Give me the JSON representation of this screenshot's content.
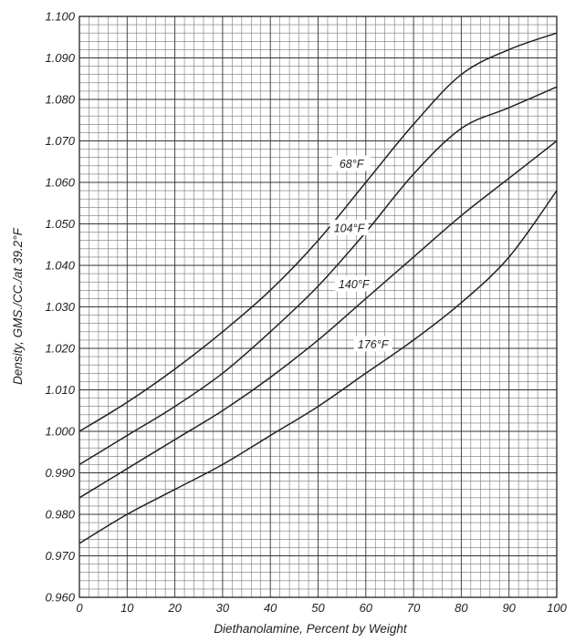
{
  "chart_data": {
    "type": "line",
    "title": "",
    "xlabel": "Diethanolamine, Percent by Weight",
    "ylabel": "Density, GMS./CC./at 39.2°F",
    "xlim": [
      0,
      100
    ],
    "ylim": [
      0.96,
      1.1
    ],
    "x_ticks": [
      "0",
      "10",
      "20",
      "30",
      "40",
      "50",
      "60",
      "70",
      "80",
      "90",
      "100"
    ],
    "y_ticks": [
      "0.960",
      "0.970",
      "0.980",
      "0.990",
      "1.000",
      "1.010",
      "1.020",
      "1.030",
      "1.040",
      "1.050",
      "1.060",
      "1.070",
      "1.080",
      "1.090",
      "1.100"
    ],
    "grid": true,
    "legend": "none",
    "series": [
      {
        "name": "68°F",
        "x": [
          0,
          10,
          20,
          30,
          40,
          50,
          60,
          70,
          80,
          90,
          100
        ],
        "values": [
          1.0,
          1.007,
          1.015,
          1.024,
          1.034,
          1.046,
          1.06,
          1.074,
          1.086,
          1.092,
          1.096
        ]
      },
      {
        "name": "104°F",
        "x": [
          0,
          10,
          20,
          30,
          40,
          50,
          60,
          70,
          80,
          90,
          100
        ],
        "values": [
          0.992,
          0.999,
          1.006,
          1.014,
          1.024,
          1.035,
          1.048,
          1.062,
          1.073,
          1.078,
          1.083
        ]
      },
      {
        "name": "140°F",
        "x": [
          0,
          10,
          20,
          30,
          40,
          50,
          60,
          70,
          80,
          90,
          100
        ],
        "values": [
          0.984,
          0.991,
          0.998,
          1.005,
          1.013,
          1.022,
          1.032,
          1.042,
          1.052,
          1.061,
          1.07
        ]
      },
      {
        "name": "176°F",
        "x": [
          0,
          10,
          20,
          30,
          40,
          50,
          60,
          70,
          80,
          90,
          100
        ],
        "values": [
          0.973,
          0.98,
          0.986,
          0.992,
          0.999,
          1.006,
          1.014,
          1.022,
          1.031,
          1.042,
          1.058
        ]
      }
    ],
    "curve_labels": [
      {
        "text": "68°F",
        "x": 57,
        "y": 1.0645
      },
      {
        "text": "104°F",
        "x": 56.5,
        "y": 1.049
      },
      {
        "text": "140°F",
        "x": 57.5,
        "y": 1.0355
      },
      {
        "text": "176°F",
        "x": 61.5,
        "y": 1.021
      }
    ]
  }
}
